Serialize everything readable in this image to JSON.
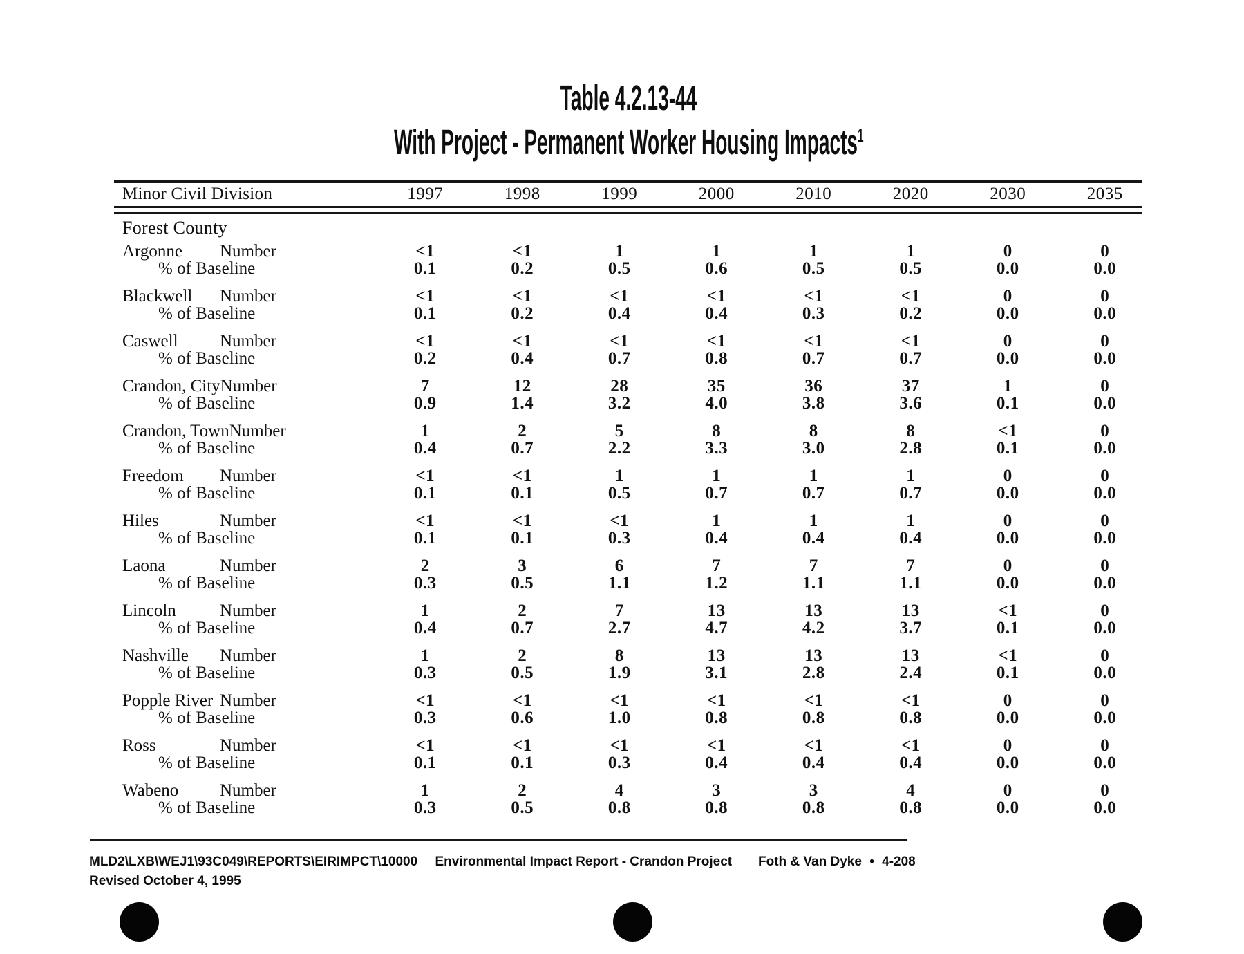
{
  "page": {
    "title": "Table 4.2.13-44",
    "subtitle": "With Project - Permanent Worker Housing Impacts",
    "subtitle_superscript": "1"
  },
  "table": {
    "columns": [
      "Minor Civil Division",
      "1997",
      "1998",
      "1999",
      "2000",
      "2010",
      "2020",
      "2030",
      "2035"
    ],
    "section": "Forest County",
    "row_label_number": "Number",
    "row_label_pct": "% of Baseline",
    "rows": [
      {
        "name": "Argonne",
        "number": [
          "<1",
          "<1",
          "1",
          "1",
          "1",
          "1",
          "0",
          "0"
        ],
        "pct": [
          "0.1",
          "0.2",
          "0.5",
          "0.6",
          "0.5",
          "0.5",
          "0.0",
          "0.0"
        ]
      },
      {
        "name": "Blackwell",
        "number": [
          "<1",
          "<1",
          "<1",
          "<1",
          "<1",
          "<1",
          "0",
          "0"
        ],
        "pct": [
          "0.1",
          "0.2",
          "0.4",
          "0.4",
          "0.3",
          "0.2",
          "0.0",
          "0.0"
        ]
      },
      {
        "name": "Caswell",
        "number": [
          "<1",
          "<1",
          "<1",
          "<1",
          "<1",
          "<1",
          "0",
          "0"
        ],
        "pct": [
          "0.2",
          "0.4",
          "0.7",
          "0.8",
          "0.7",
          "0.7",
          "0.0",
          "0.0"
        ]
      },
      {
        "name": "Crandon, City",
        "number": [
          "7",
          "12",
          "28",
          "35",
          "36",
          "37",
          "1",
          "0"
        ],
        "pct": [
          "0.9",
          "1.4",
          "3.2",
          "4.0",
          "3.8",
          "3.6",
          "0.1",
          "0.0"
        ]
      },
      {
        "name": "Crandon, Town",
        "number": [
          "1",
          "2",
          "5",
          "8",
          "8",
          "8",
          "<1",
          "0"
        ],
        "pct": [
          "0.4",
          "0.7",
          "2.2",
          "3.3",
          "3.0",
          "2.8",
          "0.1",
          "0.0"
        ]
      },
      {
        "name": "Freedom",
        "number": [
          "<1",
          "<1",
          "1",
          "1",
          "1",
          "1",
          "0",
          "0"
        ],
        "pct": [
          "0.1",
          "0.1",
          "0.5",
          "0.7",
          "0.7",
          "0.7",
          "0.0",
          "0.0"
        ]
      },
      {
        "name": "Hiles",
        "number": [
          "<1",
          "<1",
          "<1",
          "1",
          "1",
          "1",
          "0",
          "0"
        ],
        "pct": [
          "0.1",
          "0.1",
          "0.3",
          "0.4",
          "0.4",
          "0.4",
          "0.0",
          "0.0"
        ]
      },
      {
        "name": "Laona",
        "number": [
          "2",
          "3",
          "6",
          "7",
          "7",
          "7",
          "0",
          "0"
        ],
        "pct": [
          "0.3",
          "0.5",
          "1.1",
          "1.2",
          "1.1",
          "1.1",
          "0.0",
          "0.0"
        ]
      },
      {
        "name": "Lincoln",
        "number": [
          "1",
          "2",
          "7",
          "13",
          "13",
          "13",
          "<1",
          "0"
        ],
        "pct": [
          "0.4",
          "0.7",
          "2.7",
          "4.7",
          "4.2",
          "3.7",
          "0.1",
          "0.0"
        ]
      },
      {
        "name": "Nashville",
        "number": [
          "1",
          "2",
          "8",
          "13",
          "13",
          "13",
          "<1",
          "0"
        ],
        "pct": [
          "0.3",
          "0.5",
          "1.9",
          "3.1",
          "2.8",
          "2.4",
          "0.1",
          "0.0"
        ]
      },
      {
        "name": "Popple River",
        "number": [
          "<1",
          "<1",
          "<1",
          "<1",
          "<1",
          "<1",
          "0",
          "0"
        ],
        "pct": [
          "0.3",
          "0.6",
          "1.0",
          "0.8",
          "0.8",
          "0.8",
          "0.0",
          "0.0"
        ]
      },
      {
        "name": "Ross",
        "number": [
          "<1",
          "<1",
          "<1",
          "<1",
          "<1",
          "<1",
          "0",
          "0"
        ],
        "pct": [
          "0.1",
          "0.1",
          "0.3",
          "0.4",
          "0.4",
          "0.4",
          "0.0",
          "0.0"
        ]
      },
      {
        "name": "Wabeno",
        "number": [
          "1",
          "2",
          "4",
          "3",
          "3",
          "4",
          "0",
          "0"
        ],
        "pct": [
          "0.3",
          "0.5",
          "0.8",
          "0.8",
          "0.8",
          "0.8",
          "0.0",
          "0.0"
        ]
      }
    ]
  },
  "footer": {
    "file_path": "MLD2\\LXB\\WEJ1\\93C049\\REPORTS\\EIRIMPCT\\10000",
    "report_title": "Environmental Impact Report - Crandon Project",
    "publisher": "Foth & Van Dyke",
    "bullet": "•",
    "page_number": "4-208",
    "revision": "Revised October 4, 1995"
  }
}
